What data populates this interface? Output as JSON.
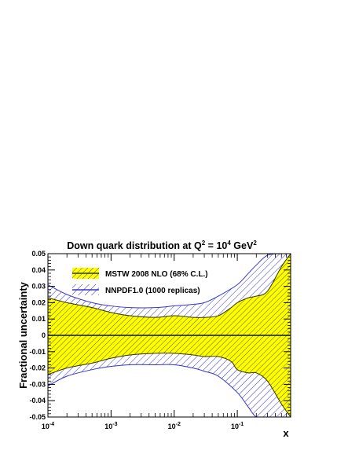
{
  "chart_data": {
    "type": "area",
    "title": "Down quark distribution at Q² = 10⁴ GeV²",
    "title_parts": {
      "pre": "Down quark distribution at Q",
      "sup1": "2",
      "mid": " = 10",
      "sup2": "4",
      "post": " GeV",
      "sup3": "2"
    },
    "xlabel": "x",
    "ylabel": "Fractional uncertainty",
    "x_scale": "log",
    "xlim": [
      0.0001,
      0.7
    ],
    "ylim": [
      -0.05,
      0.05
    ],
    "y_ticks": [
      "-0.05",
      "-0.04",
      "-0.03",
      "-0.02",
      "-0.01",
      "0",
      "0.01",
      "0.02",
      "0.03",
      "0.04",
      "0.05"
    ],
    "x_ticks": [
      {
        "base": "10",
        "exp": "-4",
        "value": 0.0001
      },
      {
        "base": "10",
        "exp": "-3",
        "value": 0.001
      },
      {
        "base": "10",
        "exp": "-2",
        "value": 0.01
      },
      {
        "base": "10",
        "exp": "-1",
        "value": 0.1
      }
    ],
    "legend_position": "top-left",
    "series": [
      {
        "name": "NNPDF1.0 (1000 replicas)",
        "style": "blue hatched band",
        "x": [
          0.0001,
          0.0002,
          0.0005,
          0.001,
          0.002,
          0.005,
          0.01,
          0.02,
          0.03,
          0.05,
          0.1,
          0.15,
          0.2,
          0.3,
          0.5,
          0.7
        ],
        "upper": [
          0.031,
          0.025,
          0.02,
          0.018,
          0.017,
          0.017,
          0.018,
          0.019,
          0.02,
          0.024,
          0.031,
          0.038,
          0.043,
          0.049,
          0.05,
          0.05
        ],
        "lower": [
          -0.031,
          -0.025,
          -0.021,
          -0.019,
          -0.018,
          -0.018,
          -0.018,
          -0.02,
          -0.022,
          -0.025,
          -0.035,
          -0.044,
          -0.05,
          -0.05,
          -0.05,
          -0.05
        ]
      },
      {
        "name": "MSTW 2008 NLO (68% C.L.)",
        "style": "yellow filled band, hatched",
        "x": [
          0.0001,
          0.0002,
          0.0005,
          0.001,
          0.002,
          0.005,
          0.01,
          0.02,
          0.03,
          0.05,
          0.08,
          0.1,
          0.15,
          0.2,
          0.3,
          0.5,
          0.7
        ],
        "upper": [
          0.023,
          0.02,
          0.017,
          0.014,
          0.012,
          0.011,
          0.012,
          0.011,
          0.011,
          0.012,
          0.017,
          0.02,
          0.023,
          0.024,
          0.027,
          0.042,
          0.05
        ],
        "lower": [
          -0.024,
          -0.02,
          -0.017,
          -0.014,
          -0.012,
          -0.011,
          -0.011,
          -0.012,
          -0.013,
          -0.013,
          -0.016,
          -0.021,
          -0.023,
          -0.023,
          -0.028,
          -0.042,
          -0.05
        ]
      }
    ],
    "colors": {
      "yellow_fill": "#ffff00",
      "blue_hatch": "#3434cc",
      "mstw_hatch": "#333300",
      "axis": "#000000",
      "zero_line": "#0a1a5a"
    }
  }
}
